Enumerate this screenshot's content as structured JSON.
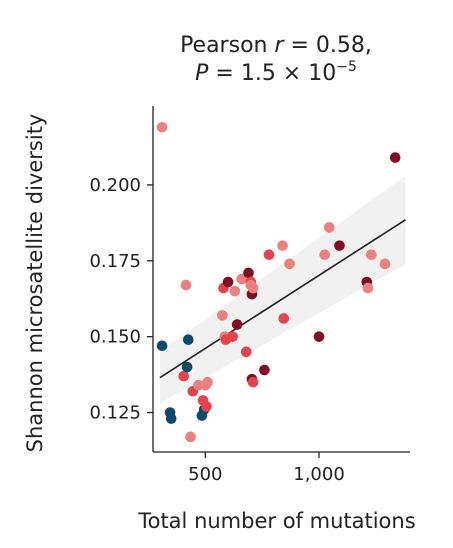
{
  "chart_data": {
    "type": "scatter",
    "title_line1_prefix": "Pearson ",
    "title_line1_var": "r",
    "title_line1_suffix": " = 0.58,",
    "title_line2_var": "P",
    "title_line2_mid": " = 1.5 × 10",
    "title_line2_exp": "−5",
    "xlabel": "Total number of mutations",
    "ylabel": "Shannon microsatellite diversity",
    "xlim": [
      270,
      1400
    ],
    "ylim": [
      0.112,
      0.226
    ],
    "x_ticks": [
      500,
      1000
    ],
    "x_tick_labels": [
      "500",
      "1,000"
    ],
    "y_ticks": [
      0.125,
      0.15,
      0.175,
      0.2
    ],
    "y_tick_labels": [
      "0.125",
      "0.150",
      "0.175",
      "0.200"
    ],
    "grid": false,
    "legend": "none",
    "colors": {
      "navy": "#0d4a6b",
      "dark_red": "#800d24",
      "red": "#e5424b",
      "pink": "#ec8080",
      "line": "#222222",
      "band": "#f1f1f1"
    },
    "regression": {
      "x": [
        300,
        1380
      ],
      "y": [
        0.1365,
        0.1885
      ],
      "band_upper": [
        0.145,
        0.203
      ],
      "band_lower": [
        0.128,
        0.174
      ]
    },
    "points": [
      {
        "x": 310,
        "y": 0.219,
        "c": "pink"
      },
      {
        "x": 310,
        "y": 0.147,
        "c": "navy"
      },
      {
        "x": 345,
        "y": 0.125,
        "c": "navy"
      },
      {
        "x": 350,
        "y": 0.123,
        "c": "navy"
      },
      {
        "x": 405,
        "y": 0.137,
        "c": "red"
      },
      {
        "x": 415,
        "y": 0.167,
        "c": "pink"
      },
      {
        "x": 425,
        "y": 0.149,
        "c": "navy"
      },
      {
        "x": 420,
        "y": 0.14,
        "c": "navy"
      },
      {
        "x": 435,
        "y": 0.117,
        "c": "pink"
      },
      {
        "x": 445,
        "y": 0.132,
        "c": "red"
      },
      {
        "x": 470,
        "y": 0.134,
        "c": "pink"
      },
      {
        "x": 485,
        "y": 0.124,
        "c": "navy"
      },
      {
        "x": 490,
        "y": 0.129,
        "c": "red"
      },
      {
        "x": 495,
        "y": 0.126,
        "c": "navy"
      },
      {
        "x": 500,
        "y": 0.134,
        "c": "pink"
      },
      {
        "x": 510,
        "y": 0.135,
        "c": "pink"
      },
      {
        "x": 505,
        "y": 0.127,
        "c": "red"
      },
      {
        "x": 575,
        "y": 0.157,
        "c": "pink"
      },
      {
        "x": 580,
        "y": 0.166,
        "c": "red"
      },
      {
        "x": 585,
        "y": 0.15,
        "c": "pink"
      },
      {
        "x": 590,
        "y": 0.149,
        "c": "red"
      },
      {
        "x": 600,
        "y": 0.168,
        "c": "dark_red"
      },
      {
        "x": 620,
        "y": 0.15,
        "c": "red"
      },
      {
        "x": 630,
        "y": 0.165,
        "c": "pink"
      },
      {
        "x": 640,
        "y": 0.154,
        "c": "dark_red"
      },
      {
        "x": 660,
        "y": 0.169,
        "c": "pink"
      },
      {
        "x": 680,
        "y": 0.145,
        "c": "red"
      },
      {
        "x": 690,
        "y": 0.171,
        "c": "dark_red"
      },
      {
        "x": 700,
        "y": 0.168,
        "c": "red"
      },
      {
        "x": 700,
        "y": 0.167,
        "c": "pink"
      },
      {
        "x": 705,
        "y": 0.164,
        "c": "dark_red"
      },
      {
        "x": 710,
        "y": 0.166,
        "c": "pink"
      },
      {
        "x": 705,
        "y": 0.136,
        "c": "dark_red"
      },
      {
        "x": 710,
        "y": 0.135,
        "c": "red"
      },
      {
        "x": 760,
        "y": 0.139,
        "c": "dark_red"
      },
      {
        "x": 780,
        "y": 0.177,
        "c": "red"
      },
      {
        "x": 840,
        "y": 0.18,
        "c": "pink"
      },
      {
        "x": 845,
        "y": 0.156,
        "c": "red"
      },
      {
        "x": 870,
        "y": 0.174,
        "c": "pink"
      },
      {
        "x": 1000,
        "y": 0.15,
        "c": "dark_red"
      },
      {
        "x": 1025,
        "y": 0.177,
        "c": "pink"
      },
      {
        "x": 1045,
        "y": 0.186,
        "c": "pink"
      },
      {
        "x": 1090,
        "y": 0.18,
        "c": "dark_red"
      },
      {
        "x": 1210,
        "y": 0.168,
        "c": "dark_red"
      },
      {
        "x": 1215,
        "y": 0.166,
        "c": "pink"
      },
      {
        "x": 1230,
        "y": 0.177,
        "c": "pink"
      },
      {
        "x": 1290,
        "y": 0.174,
        "c": "pink"
      },
      {
        "x": 1335,
        "y": 0.209,
        "c": "dark_red"
      }
    ]
  }
}
